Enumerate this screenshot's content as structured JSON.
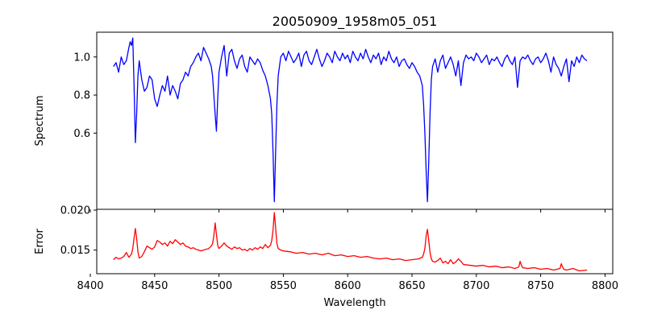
{
  "chart_data": [
    {
      "type": "line",
      "panel": "top",
      "title": "20050909_1958m05_051",
      "xlabel": "",
      "ylabel": "Spectrum",
      "xlim": [
        8405,
        8806
      ],
      "ylim": [
        0.2,
        1.13
      ],
      "xticks": [
        8400,
        8450,
        8500,
        8550,
        8600,
        8650,
        8700,
        8750,
        8800
      ],
      "yticks": [
        0.6,
        0.8,
        1.0
      ],
      "ytick_labels": [
        "0.6",
        "0.8",
        "1.0"
      ],
      "grid": false,
      "series": [
        {
          "color": "#0000ff",
          "x": [
            8418,
            8420,
            8422,
            8424,
            8426,
            8428,
            8430,
            8431,
            8432,
            8433,
            8434,
            8435,
            8436,
            8437,
            8438,
            8440,
            8442,
            8444,
            8446,
            8448,
            8450,
            8452,
            8454,
            8456,
            8458,
            8460,
            8462,
            8464,
            8466,
            8468,
            8470,
            8472,
            8474,
            8476,
            8478,
            8480,
            8482,
            8484,
            8486,
            8488,
            8490,
            8492,
            8494,
            8495,
            8496,
            8497,
            8498,
            8499,
            8500,
            8502,
            8504,
            8506,
            8508,
            8510,
            8512,
            8514,
            8516,
            8518,
            8520,
            8522,
            8524,
            8526,
            8528,
            8530,
            8532,
            8534,
            8536,
            8538,
            8540,
            8541,
            8542,
            8543,
            8544,
            8545,
            8546,
            8548,
            8550,
            8552,
            8554,
            8556,
            8558,
            8560,
            8562,
            8564,
            8566,
            8568,
            8570,
            8572,
            8574,
            8576,
            8578,
            8580,
            8582,
            8584,
            8586,
            8588,
            8590,
            8592,
            8594,
            8596,
            8598,
            8600,
            8602,
            8604,
            8606,
            8608,
            8610,
            8612,
            8614,
            8616,
            8618,
            8620,
            8622,
            8624,
            8626,
            8628,
            8630,
            8632,
            8634,
            8636,
            8638,
            8640,
            8642,
            8644,
            8646,
            8648,
            8650,
            8652,
            8654,
            8656,
            8658,
            8659,
            8660,
            8661,
            8662,
            8663,
            8664,
            8665,
            8666,
            8668,
            8670,
            8672,
            8674,
            8676,
            8678,
            8680,
            8682,
            8684,
            8686,
            8688,
            8690,
            8692,
            8694,
            8696,
            8698,
            8700,
            8702,
            8704,
            8706,
            8708,
            8710,
            8712,
            8714,
            8716,
            8718,
            8720,
            8722,
            8724,
            8726,
            8728,
            8730,
            8732,
            8734,
            8736,
            8738,
            8740,
            8742,
            8744,
            8746,
            8748,
            8750,
            8752,
            8754,
            8756,
            8758,
            8760,
            8762,
            8764,
            8766,
            8768,
            8770,
            8772,
            8774,
            8776,
            8778,
            8780,
            8782,
            8784,
            8786
          ],
          "y": [
            0.95,
            0.97,
            0.92,
            1.0,
            0.96,
            0.98,
            1.05,
            1.08,
            1.06,
            1.1,
            0.85,
            0.55,
            0.7,
            0.9,
            0.98,
            0.88,
            0.82,
            0.84,
            0.9,
            0.88,
            0.78,
            0.74,
            0.8,
            0.85,
            0.82,
            0.9,
            0.8,
            0.85,
            0.82,
            0.78,
            0.86,
            0.88,
            0.92,
            0.9,
            0.95,
            0.97,
            1.0,
            1.02,
            0.98,
            1.05,
            1.02,
            0.99,
            0.95,
            0.9,
            0.8,
            0.7,
            0.61,
            0.78,
            0.92,
            1.0,
            1.06,
            0.9,
            1.02,
            1.04,
            0.98,
            0.94,
            0.99,
            1.01,
            0.95,
            0.92,
            1.0,
            0.98,
            0.96,
            0.99,
            0.97,
            0.93,
            0.9,
            0.85,
            0.78,
            0.7,
            0.5,
            0.24,
            0.5,
            0.75,
            0.9,
            1.0,
            1.02,
            0.98,
            1.03,
            1.0,
            0.97,
            0.99,
            1.02,
            0.95,
            1.01,
            1.03,
            0.98,
            0.96,
            1.0,
            1.04,
            0.99,
            0.95,
            0.98,
            1.02,
            1.0,
            0.97,
            1.03,
            1.0,
            0.98,
            1.02,
            0.99,
            1.01,
            0.97,
            1.03,
            1.0,
            0.98,
            1.02,
            0.99,
            1.04,
            1.0,
            0.97,
            1.01,
            0.99,
            1.02,
            0.96,
            1.0,
            0.98,
            1.03,
            0.99,
            0.97,
            1.0,
            0.95,
            0.98,
            0.99,
            0.96,
            0.94,
            0.97,
            0.95,
            0.92,
            0.9,
            0.85,
            0.75,
            0.6,
            0.4,
            0.24,
            0.45,
            0.7,
            0.88,
            0.95,
            0.99,
            0.92,
            0.98,
            1.01,
            0.94,
            0.97,
            1.0,
            0.96,
            0.9,
            0.98,
            0.85,
            0.97,
            1.01,
            0.99,
            1.0,
            0.98,
            1.02,
            1.0,
            0.97,
            0.99,
            1.01,
            0.96,
            0.99,
            0.98,
            1.0,
            0.97,
            0.95,
            0.99,
            1.01,
            0.98,
            0.96,
            1.0,
            0.84,
            0.98,
            1.0,
            0.99,
            1.01,
            0.98,
            0.96,
            0.99,
            1.0,
            0.97,
            0.99,
            1.02,
            0.98,
            0.92,
            1.0,
            0.96,
            0.94,
            0.9,
            0.95,
            0.99,
            0.87,
            0.98,
            0.95,
            1.0,
            0.97,
            1.01,
            0.99,
            0.98
          ]
        }
      ]
    },
    {
      "type": "line",
      "panel": "bottom",
      "title": "",
      "xlabel": "Wavelength",
      "ylabel": "Error",
      "xlim": [
        8405,
        8806
      ],
      "ylim": [
        0.01205,
        0.0201
      ],
      "xticks": [
        8400,
        8450,
        8500,
        8550,
        8600,
        8650,
        8700,
        8750,
        8800
      ],
      "xtick_labels": [
        "8400",
        "8450",
        "8500",
        "8550",
        "8600",
        "8650",
        "8700",
        "8750",
        "8800"
      ],
      "yticks": [
        0.015,
        0.02
      ],
      "ytick_labels": [
        "0.015",
        "0.020"
      ],
      "grid": false,
      "series": [
        {
          "color": "#ff0000",
          "x": [
            8418,
            8420,
            8422,
            8424,
            8426,
            8428,
            8430,
            8432,
            8433,
            8434,
            8435,
            8436,
            8437,
            8438,
            8440,
            8442,
            8444,
            8446,
            8448,
            8450,
            8452,
            8454,
            8456,
            8458,
            8460,
            8462,
            8464,
            8466,
            8468,
            8470,
            8472,
            8474,
            8476,
            8478,
            8480,
            8482,
            8484,
            8486,
            8488,
            8490,
            8492,
            8494,
            8495,
            8496,
            8497,
            8498,
            8499,
            8500,
            8502,
            8504,
            8506,
            8508,
            8510,
            8512,
            8514,
            8516,
            8518,
            8520,
            8522,
            8524,
            8526,
            8528,
            8530,
            8532,
            8534,
            8536,
            8538,
            8540,
            8541,
            8542,
            8543,
            8544,
            8545,
            8546,
            8548,
            8550,
            8555,
            8560,
            8565,
            8570,
            8575,
            8580,
            8585,
            8590,
            8595,
            8600,
            8605,
            8610,
            8615,
            8620,
            8625,
            8630,
            8635,
            8640,
            8645,
            8650,
            8655,
            8658,
            8659,
            8660,
            8661,
            8662,
            8663,
            8664,
            8665,
            8666,
            8668,
            8670,
            8672,
            8674,
            8676,
            8678,
            8680,
            8682,
            8684,
            8686,
            8688,
            8690,
            8695,
            8700,
            8705,
            8710,
            8715,
            8720,
            8725,
            8730,
            8733,
            8734,
            8735,
            8736,
            8740,
            8745,
            8750,
            8755,
            8760,
            8765,
            8766,
            8767,
            8768,
            8770,
            8775,
            8780,
            8786
          ],
          "y": [
            0.0138,
            0.0141,
            0.0139,
            0.014,
            0.0142,
            0.0147,
            0.0141,
            0.0145,
            0.0152,
            0.0165,
            0.0177,
            0.0165,
            0.0148,
            0.014,
            0.0142,
            0.0148,
            0.0155,
            0.0153,
            0.0151,
            0.0154,
            0.0162,
            0.016,
            0.0157,
            0.0159,
            0.0155,
            0.0161,
            0.0158,
            0.0163,
            0.016,
            0.0157,
            0.0159,
            0.0155,
            0.0154,
            0.0152,
            0.0153,
            0.0151,
            0.015,
            0.0149,
            0.015,
            0.0151,
            0.0152,
            0.0155,
            0.0158,
            0.0168,
            0.0184,
            0.017,
            0.0156,
            0.0152,
            0.0155,
            0.0159,
            0.0155,
            0.0153,
            0.0151,
            0.0154,
            0.0152,
            0.0153,
            0.015,
            0.0151,
            0.0149,
            0.0152,
            0.015,
            0.0153,
            0.0151,
            0.0154,
            0.0152,
            0.0157,
            0.0153,
            0.0156,
            0.0162,
            0.0175,
            0.0197,
            0.0178,
            0.0158,
            0.0152,
            0.015,
            0.0149,
            0.0148,
            0.0146,
            0.0147,
            0.0145,
            0.0146,
            0.0144,
            0.0146,
            0.0143,
            0.0144,
            0.0142,
            0.0143,
            0.0141,
            0.0142,
            0.014,
            0.0139,
            0.014,
            0.0138,
            0.0139,
            0.0137,
            0.0138,
            0.0139,
            0.0141,
            0.0145,
            0.0152,
            0.0168,
            0.0176,
            0.0162,
            0.0147,
            0.0139,
            0.0136,
            0.0135,
            0.0137,
            0.014,
            0.0134,
            0.0136,
            0.0133,
            0.0138,
            0.0133,
            0.0135,
            0.0139,
            0.0136,
            0.0132,
            0.0131,
            0.013,
            0.0131,
            0.0129,
            0.013,
            0.0128,
            0.0129,
            0.0127,
            0.0129,
            0.0136,
            0.0131,
            0.0128,
            0.0127,
            0.0128,
            0.0126,
            0.0127,
            0.0125,
            0.0127,
            0.0133,
            0.0129,
            0.0126,
            0.0125,
            0.0127,
            0.0124,
            0.0125
          ]
        }
      ]
    }
  ]
}
